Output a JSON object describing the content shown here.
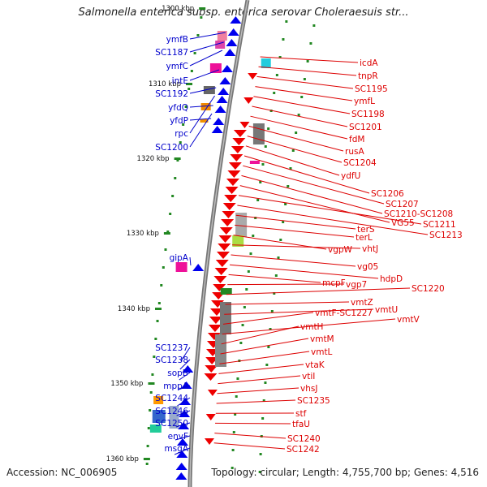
{
  "title": "Salmonella enterica subsp. enterica serovar Choleraesuis str...",
  "footer": {
    "accession": "Accession: NC_006905",
    "summary": "Topology: circular; Length: 4,755,700 bp; Genes: 4,516"
  },
  "ticks": [
    "1300 kbp",
    "1310 kbp",
    "1320 kbp",
    "1330 kbp",
    "1340 kbp",
    "1350 kbp",
    "1360 kbp"
  ],
  "left_genes": [
    "ymfB",
    "SC1187",
    "ymfC",
    "intE",
    "SC1192",
    "yfdQ",
    "yfdP",
    "rpc",
    "SC1200",
    "gipA",
    "SC1237",
    "SC1238",
    "sopB",
    "mppA",
    "SC1244",
    "SC1246",
    "SC1250",
    "envF",
    "msgA"
  ],
  "right_genes": [
    "icdA",
    "tnpR",
    "SC1195",
    "ymfL",
    "SC1198",
    "SC1201",
    "fdM",
    "rusA",
    "SC1204",
    "ydfU",
    "SC1206",
    "SC1207",
    "SC1210-SC1208",
    "VG55",
    "SC1211",
    "SC1213",
    "terS",
    "terL",
    "vgpW",
    "vhtJ",
    "vg05",
    "hdpD",
    "mcpF",
    "vgp7",
    "SC1220",
    "vmtZ",
    "vmtU",
    "vmtF-SC1227",
    "vmtV",
    "vmtH",
    "vmtM",
    "vmtL",
    "vtaK",
    "vtiI",
    "vhsJ",
    "SC1235",
    "stf",
    "tfaU",
    "SC1240",
    "SC1242"
  ],
  "colors": {
    "left_label": "#0000cc",
    "right_label": "#dd0000",
    "forward_strand": "#0000ee",
    "reverse_strand": "#ee0000",
    "backbone": "#888888",
    "tick_mark": "#228822"
  }
}
